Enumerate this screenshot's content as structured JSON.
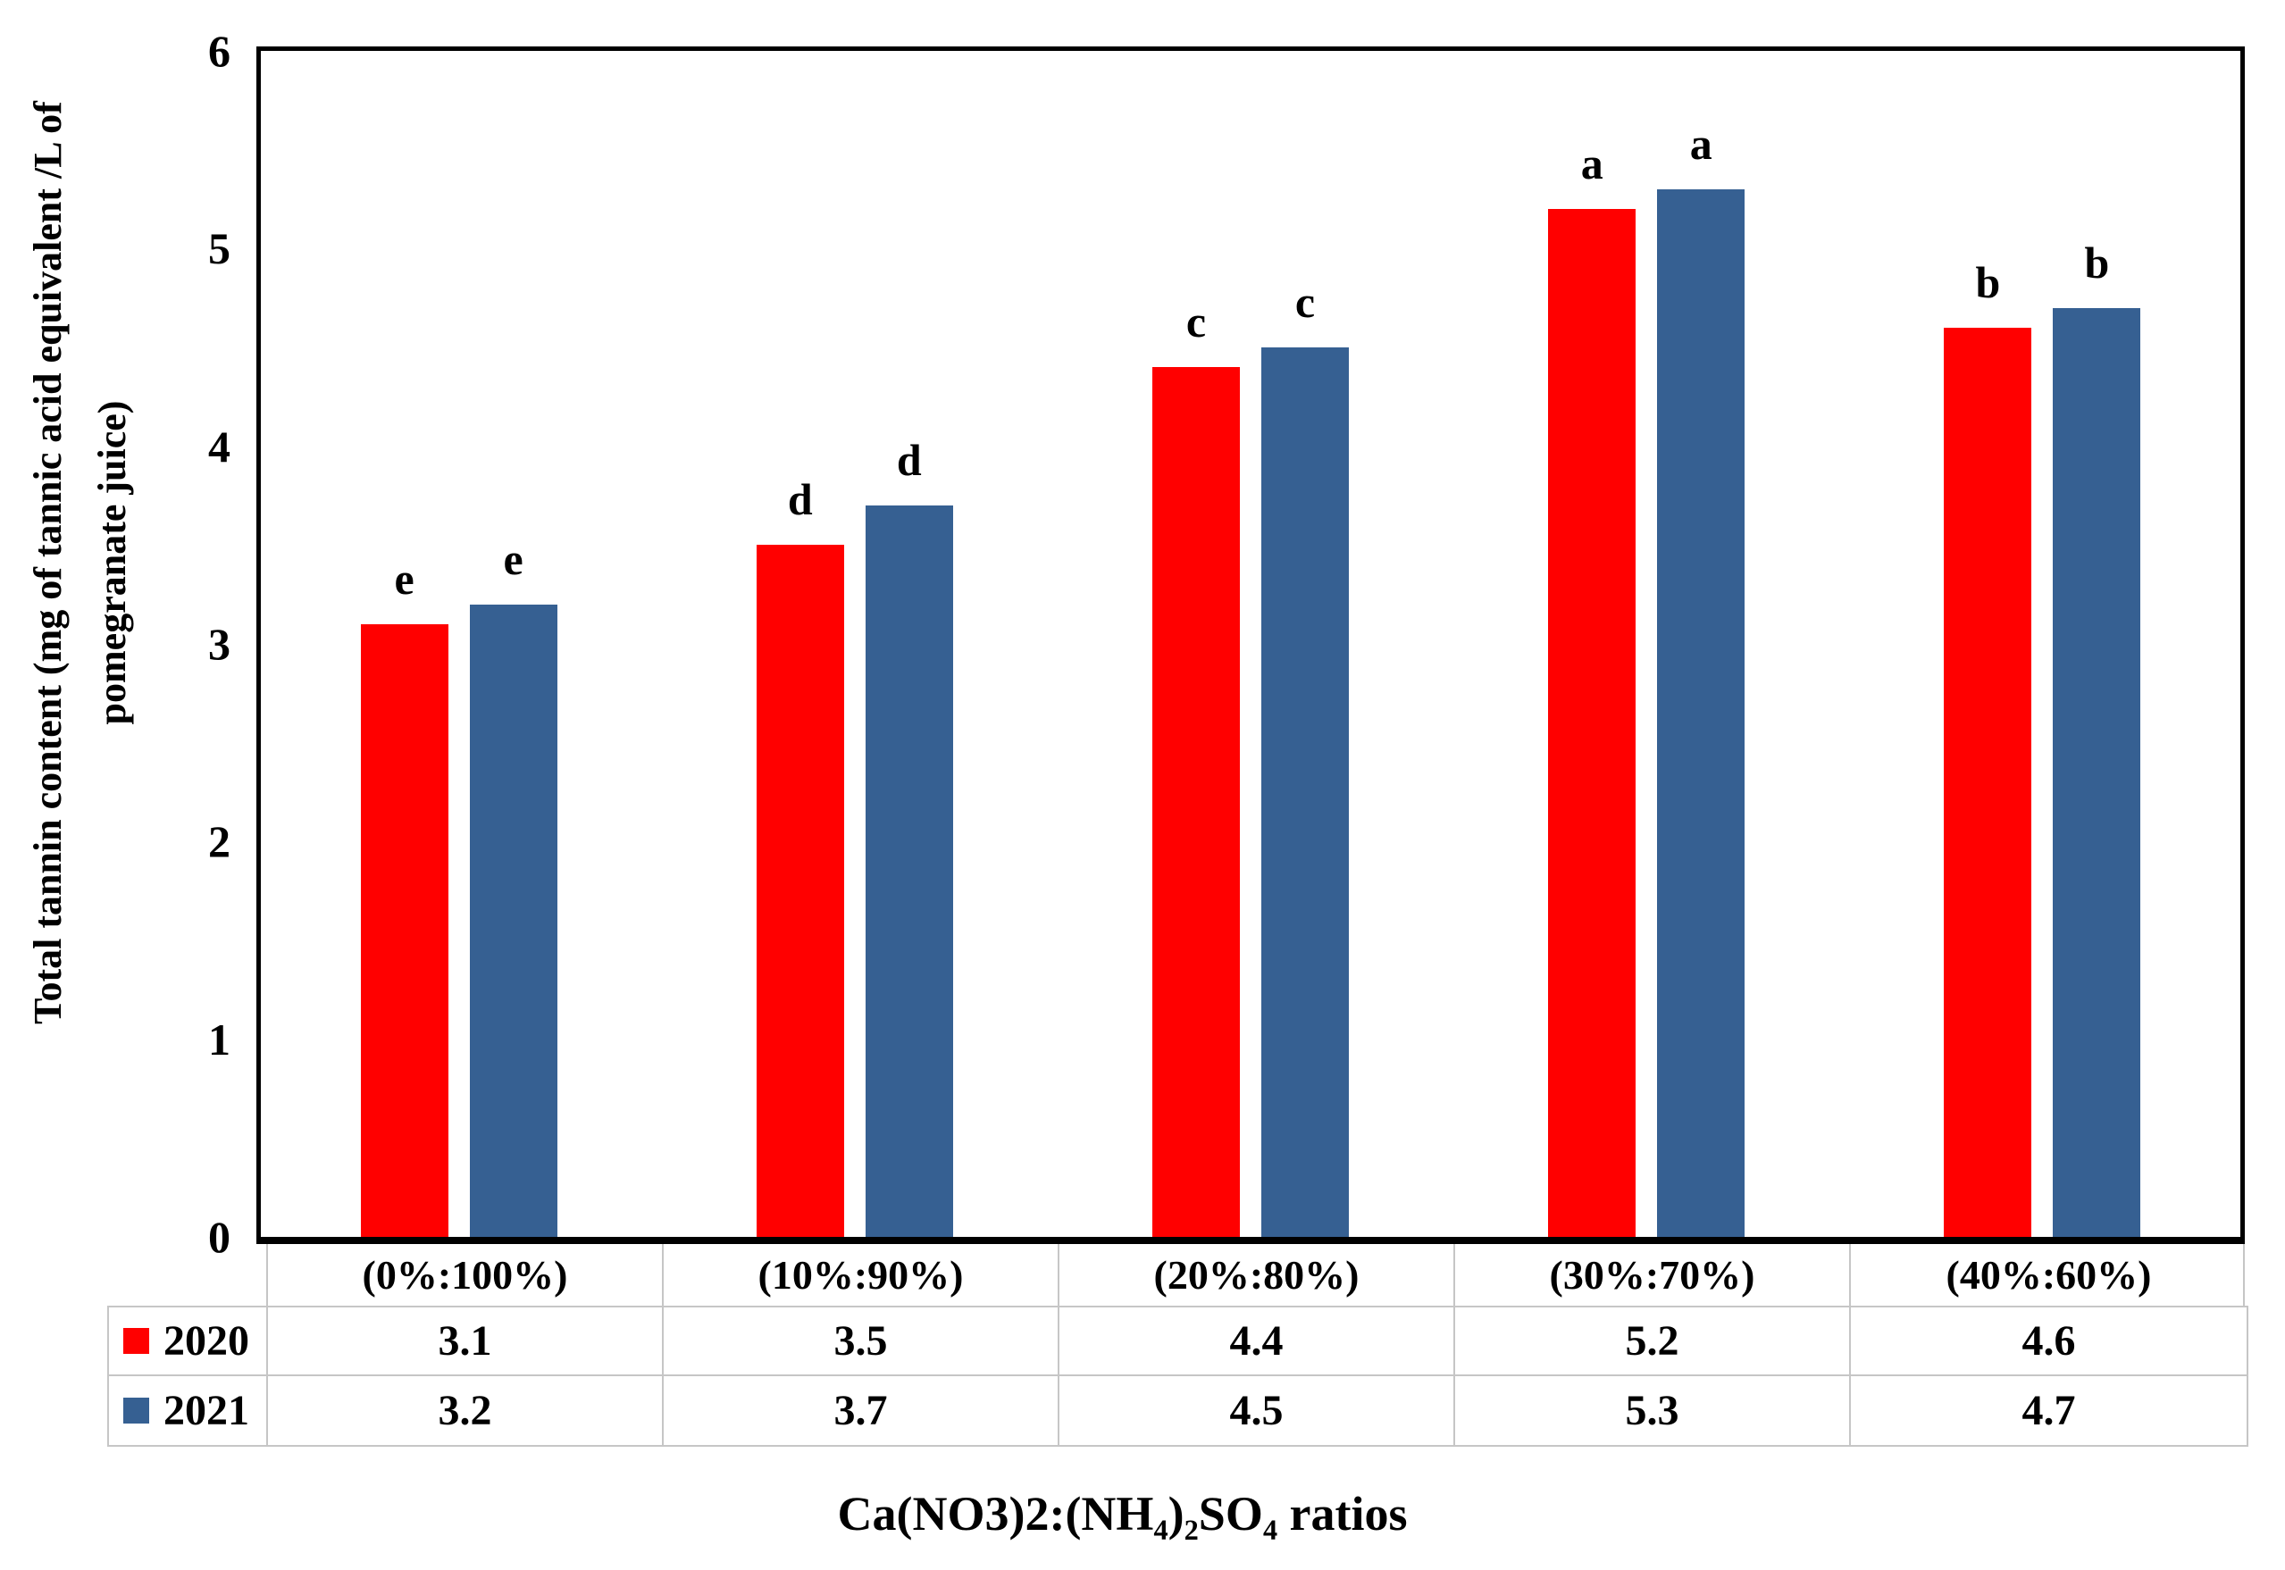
{
  "chart_data": {
    "type": "bar",
    "title": "",
    "categories": [
      "(0%:100%)",
      "(10%:90%)",
      "(20%:80%)",
      "(30%:70%)",
      "(40%:60%)"
    ],
    "series": [
      {
        "name": "2020",
        "color": "#ff0000",
        "values": [
          3.1,
          3.5,
          4.4,
          5.2,
          4.6
        ],
        "sig_letters": [
          "e",
          "d",
          "c",
          "a",
          "b"
        ]
      },
      {
        "name": "2021",
        "color": "#366092",
        "values": [
          3.2,
          3.7,
          4.5,
          5.3,
          4.7
        ],
        "sig_letters": [
          "e",
          "d",
          "c",
          "a",
          "b"
        ]
      }
    ],
    "ylabel_lines": [
      "Total tannin content (mg of tannic acid equivalent /L of",
      "pomegranate juice)"
    ],
    "xlabel": "Ca(NO3)2:(NH₄)₂SO₄ ratios",
    "ylim": [
      0,
      6
    ],
    "yticks": [
      0,
      1,
      2,
      3,
      4,
      5,
      6
    ],
    "grid": false,
    "legend_position": "table-left-rows"
  }
}
